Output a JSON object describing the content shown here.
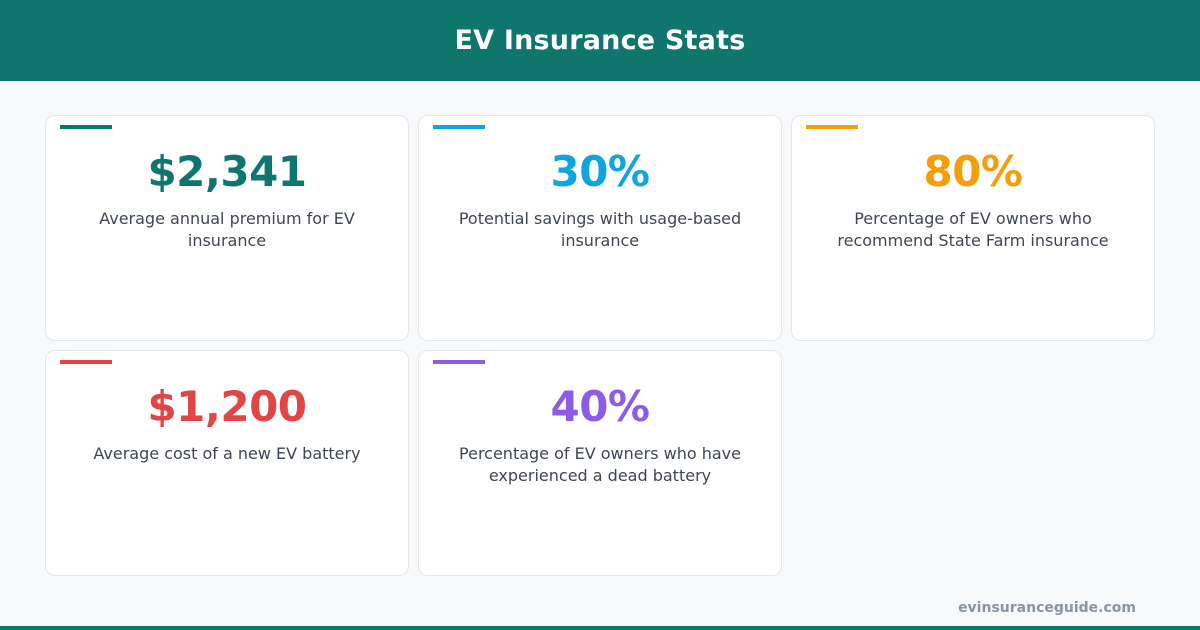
{
  "header": {
    "title": "EV Insurance Stats"
  },
  "cards": [
    {
      "value": "$2,341",
      "label": "Average annual premium for EV insurance",
      "color": "#0f766e"
    },
    {
      "value": "30%",
      "label": "Potential savings with usage-based insurance",
      "color": "#0ea5e0"
    },
    {
      "value": "80%",
      "label": "Percentage of EV owners who recommend State Farm insurance",
      "color": "#f59e0b"
    },
    {
      "value": "$1,200",
      "label": "Average cost of a new EV battery",
      "color": "#e04646"
    },
    {
      "value": "40%",
      "label": "Percentage of EV owners who have experienced a dead battery",
      "color": "#8b5ce6"
    }
  ],
  "footer": {
    "url": "evinsuranceguide.com"
  },
  "colors": {
    "brand": "#0f766e",
    "background": "#f8f9fb"
  }
}
